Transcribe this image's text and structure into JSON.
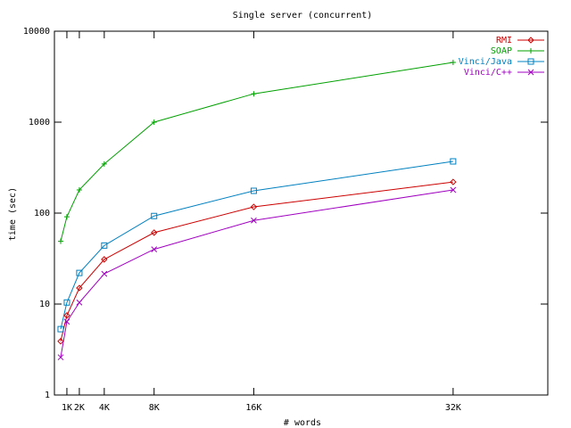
{
  "chart_data": {
    "type": "line",
    "title": "Single server (concurrent)",
    "xlabel": "# words",
    "ylabel": "time (sec)",
    "x": [
      500,
      1000,
      2000,
      4000,
      8000,
      16000,
      32000
    ],
    "series": [
      {
        "name": "RMI",
        "color": "#cc0000",
        "marker": "diamond",
        "values": [
          3.9,
          7.5,
          15,
          31,
          61,
          117,
          220
        ]
      },
      {
        "name": "SOAP",
        "color": "#00a000",
        "marker": "plus",
        "values": [
          49,
          91,
          180,
          347,
          1000,
          2050,
          4540
        ]
      },
      {
        "name": "Vinci/Java",
        "color": "#0080c0",
        "marker": "square",
        "values": [
          5.3,
          10.4,
          22,
          44,
          93,
          176,
          370
        ]
      },
      {
        "name": "Vinci/C++",
        "color": "#a000c0",
        "marker": "cross",
        "values": [
          2.6,
          6.4,
          10.4,
          21.5,
          40,
          83,
          180
        ]
      }
    ],
    "xlim": [
      0,
      39600
    ],
    "xticks": [
      {
        "value": 1000,
        "label": "1K"
      },
      {
        "value": 2000,
        "label": "2K"
      },
      {
        "value": 4000,
        "label": "4K"
      },
      {
        "value": 8000,
        "label": "8K"
      },
      {
        "value": 16000,
        "label": "16K"
      },
      {
        "value": 32000,
        "label": "32K"
      }
    ],
    "ylim": [
      1,
      10000
    ],
    "yticks": [
      1,
      10,
      100,
      1000,
      10000
    ],
    "log_y": true,
    "grid": false,
    "legend": "top-right"
  }
}
